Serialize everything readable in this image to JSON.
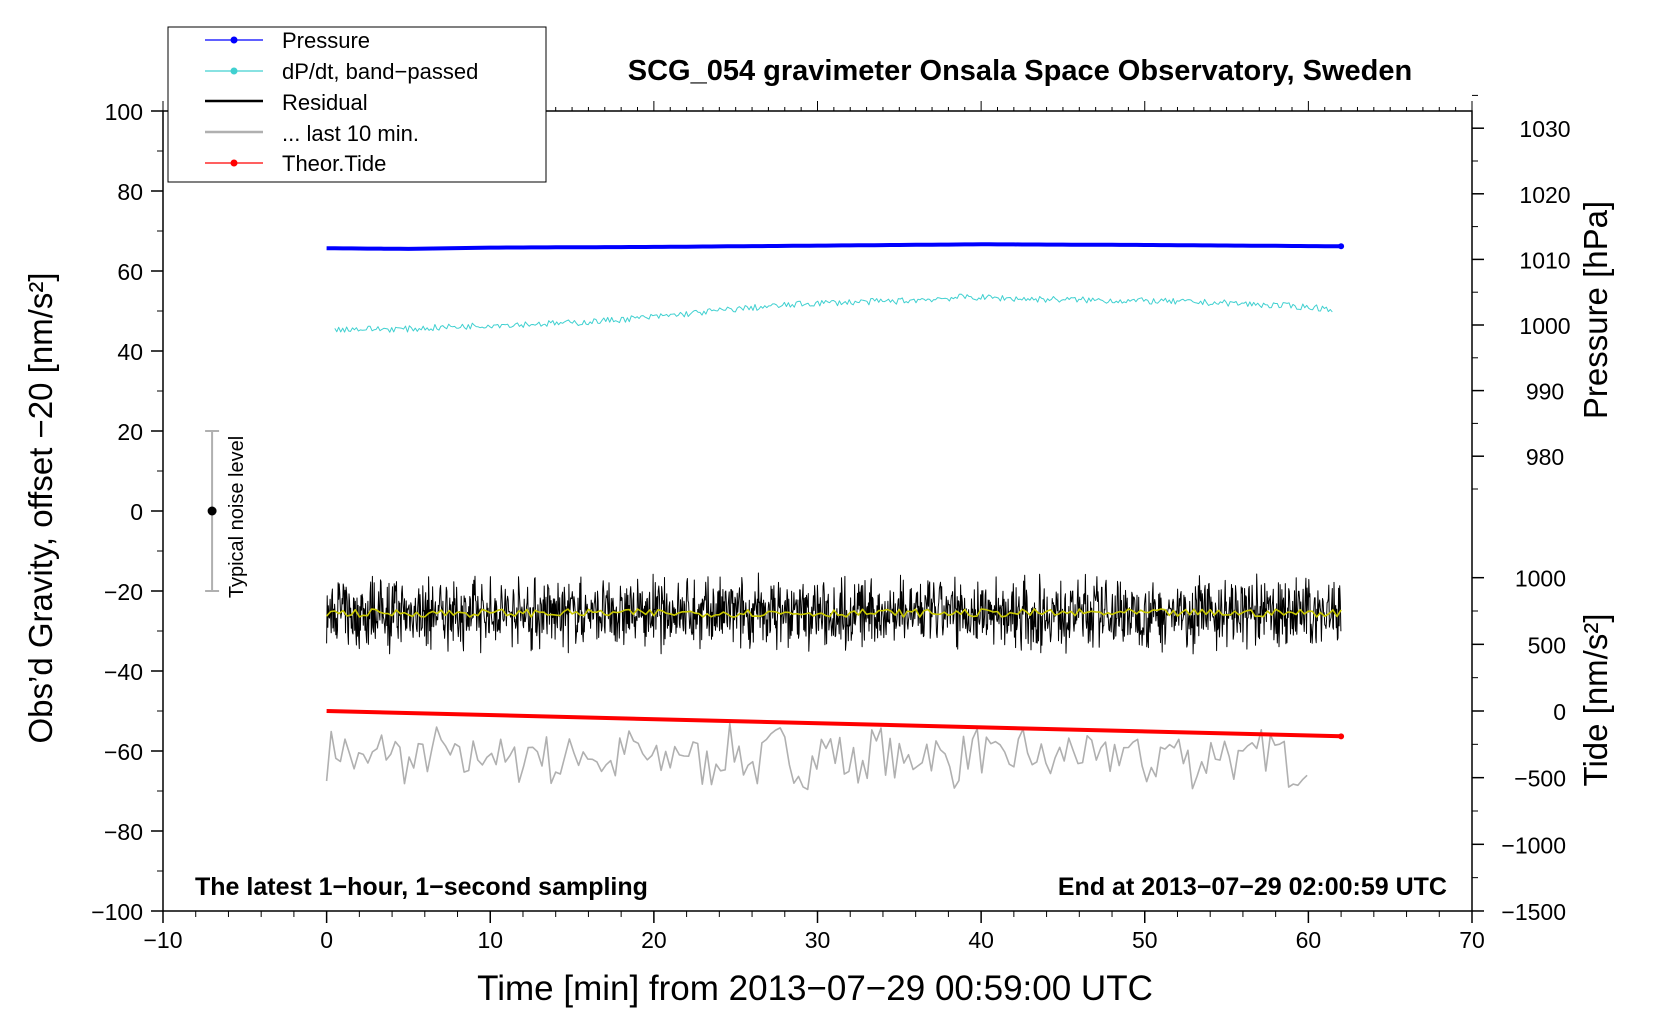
{
  "chart_data": {
    "type": "line",
    "title": "SCG_054 gravimeter Onsala Space Observatory, Sweden",
    "xlabel": "Time [min] from 2013−07−29 00:59:00 UTC",
    "ylabel_left": "Obs’d Gravity, offset −20 [nm/s²]",
    "ylabel_right_pressure": "Pressure [hPa]",
    "ylabel_right_tide": "Tide [nm/s²]",
    "xlim": [
      -10,
      70
    ],
    "ylim": [
      -100,
      100
    ],
    "x_ticks": [
      -10,
      0,
      10,
      20,
      30,
      40,
      50,
      60,
      70
    ],
    "x_tick_labels": [
      "−10",
      "0",
      "10",
      "20",
      "30",
      "40",
      "50",
      "60",
      "70"
    ],
    "y_ticks": [
      -100,
      -80,
      -60,
      -40,
      -20,
      0,
      20,
      40,
      60,
      80,
      100
    ],
    "y_tick_labels": [
      "−100",
      "−80",
      "−60",
      "−40",
      "−20",
      "0",
      "20",
      "40",
      "60",
      "80",
      "100"
    ],
    "pressure_axis": {
      "ticks": [
        980,
        990,
        1000,
        1010,
        1020,
        1030
      ],
      "tick_labels": [
        "980",
        "990",
        "1000",
        "1010",
        "1020",
        "1030"
      ],
      "left_value_at_1000": 46.5,
      "left_units_per_hpa": 1.64
    },
    "tide_axis": {
      "ticks": [
        -1500,
        -1000,
        -500,
        0,
        500,
        1000
      ],
      "tick_labels": [
        "−1500",
        "−1000",
        "−500",
        "0",
        "500",
        "1000"
      ],
      "left_value_at_0": -50,
      "left_units_per_nms2": 0.03333
    },
    "legend": {
      "position": "top-left",
      "entries": [
        {
          "label": "Pressure",
          "color": "#0000ff",
          "marker": true
        },
        {
          "label": "dP/dt, band−passed",
          "color": "#40d0d0",
          "marker": true
        },
        {
          "label": "Residual",
          "color": "#000000",
          "marker": false
        },
        {
          "label": "... last 10 min.",
          "color": "#b0b0b0",
          "marker": false
        },
        {
          "label": "Theor.Tide",
          "color": "#ff0000",
          "marker": true
        }
      ]
    },
    "series": [
      {
        "name": "Pressure",
        "color": "#0000ff",
        "axis": "pressure",
        "x": [
          0,
          5,
          10,
          20,
          30,
          40,
          50,
          62
        ],
        "values": [
          1011.7,
          1011.6,
          1011.8,
          1011.9,
          1012.1,
          1012.3,
          1012.2,
          1012.0
        ]
      },
      {
        "name": "dP/dt, band−passed",
        "color": "#40d0d0",
        "axis": "left",
        "x": [
          0.5,
          5,
          10,
          15,
          20,
          25,
          30,
          35,
          39,
          43,
          50,
          55,
          60,
          61.5
        ],
        "values": [
          45.5,
          45.5,
          46.5,
          47,
          48.5,
          50.5,
          52,
          52.5,
          53.5,
          53,
          52.5,
          52,
          51,
          50.5
        ],
        "noise_amplitude": 0.8
      },
      {
        "name": "Residual",
        "color": "#000000",
        "axis": "left",
        "x_range": [
          0,
          62
        ],
        "mean": -25.5,
        "noise_amplitude": 7
      },
      {
        "name": "Residual (smoothed)",
        "color": "#c8c800",
        "axis": "left",
        "x_range": [
          0,
          62
        ],
        "mean": -25.5,
        "noise_amplitude": 1
      },
      {
        "name": "... last 10 min.",
        "color": "#b0b0b0",
        "axis": "left",
        "x_range": [
          0,
          60
        ],
        "mean": -61.5,
        "noise_amplitude": 6
      },
      {
        "name": "Theor.Tide",
        "color": "#ff0000",
        "axis": "tide",
        "x": [
          0,
          62
        ],
        "values": [
          0,
          -190
        ]
      }
    ],
    "noise_indicator": {
      "label": "Typical noise level",
      "x": -7,
      "center": 0,
      "low": -20,
      "high": 20,
      "color": "#b0b0b0"
    },
    "annotations": {
      "bottom_left": "The latest 1−hour, 1−second sampling",
      "bottom_right": "End at 2013−07−29 02:00:59 UTC"
    }
  }
}
